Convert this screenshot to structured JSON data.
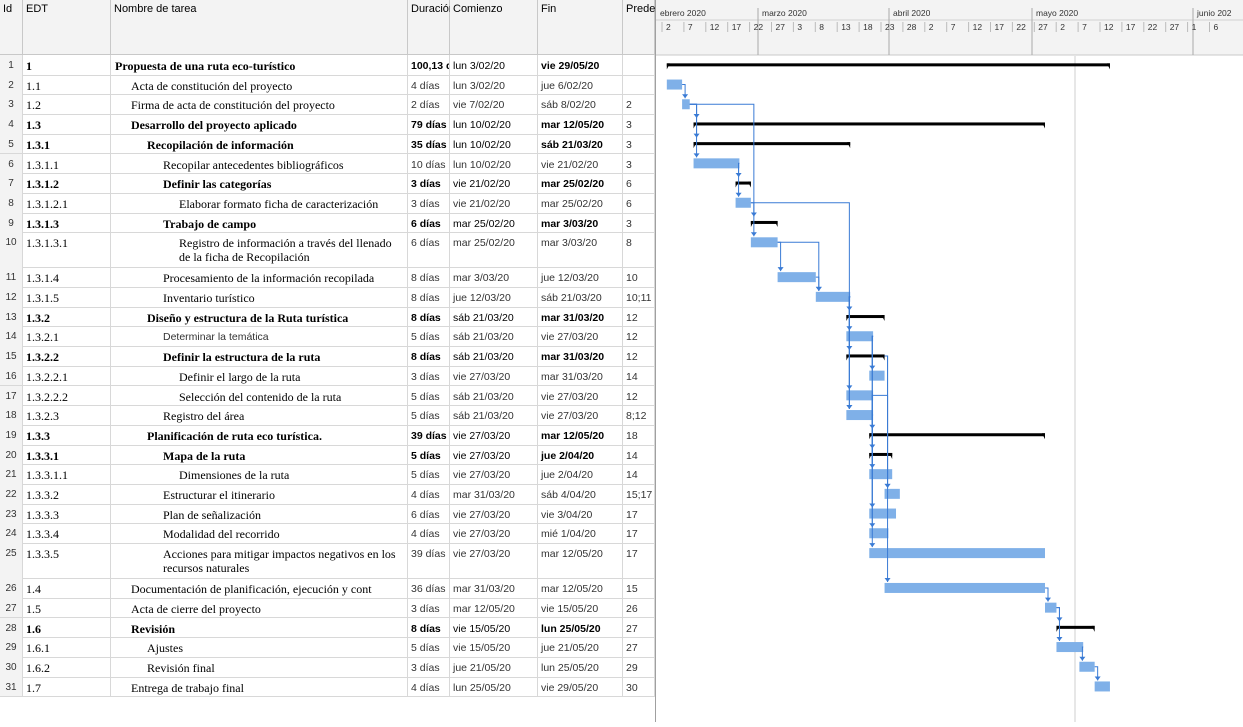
{
  "columns": {
    "id": "Id",
    "edt": "EDT",
    "name": "Nombre de tarea",
    "duration": "Duración",
    "start": "Comienzo",
    "finish": "Fin",
    "pred": "Predec"
  },
  "timeline": {
    "months": [
      "ebrero 2020",
      "marzo 2020",
      "abril 2020",
      "mayo 2020",
      "junio 202"
    ],
    "days": [
      "2",
      "7",
      "12",
      "17",
      "22",
      "27",
      "3",
      "8",
      "13",
      "18",
      "23",
      "28",
      "2",
      "7",
      "12",
      "17",
      "22",
      "27",
      "2",
      "7",
      "12",
      "17",
      "22",
      "27",
      "1",
      "6"
    ]
  },
  "colors": {
    "bar": "#7fb0e8",
    "summary": "#000000",
    "link": "#3a7bd5",
    "grid": "#e0e0e0"
  },
  "tasks": [
    {
      "id": "1",
      "edt": "1",
      "name": "Propuesta de una ruta eco-turístico",
      "dur": "100,13 d",
      "start": "lun 3/02/20",
      "fin": "vie 29/05/20",
      "pred": "",
      "summary": true,
      "indent": 0,
      "s": 1,
      "e": 117
    },
    {
      "id": "2",
      "edt": "1.1",
      "name": "Acta de constitución del proyecto",
      "dur": "4 días",
      "start": "lun 3/02/20",
      "fin": "jue 6/02/20",
      "pred": "",
      "summary": false,
      "indent": 1,
      "s": 1,
      "e": 5
    },
    {
      "id": "3",
      "edt": "1.2",
      "name": "Firma de acta de constitución del proyecto",
      "dur": "2 días",
      "start": "vie 7/02/20",
      "fin": "sáb 8/02/20",
      "pred": "2",
      "summary": false,
      "indent": 1,
      "s": 5,
      "e": 7
    },
    {
      "id": "4",
      "edt": "1.3",
      "name": "Desarrollo del proyecto aplicado",
      "dur": "79 días",
      "start": "lun 10/02/20",
      "fin": "mar 12/05/20",
      "pred": "3",
      "summary": true,
      "indent": 1,
      "s": 8,
      "e": 100
    },
    {
      "id": "5",
      "edt": "1.3.1",
      "name": "Recopilación de información",
      "dur": "35 días",
      "start": "lun 10/02/20",
      "fin": "sáb 21/03/20",
      "pred": "3",
      "summary": true,
      "indent": 2,
      "s": 8,
      "e": 49
    },
    {
      "id": "6",
      "edt": "1.3.1.1",
      "name": "Recopilar antecedentes bibliográficos",
      "dur": "10 días",
      "start": "lun 10/02/20",
      "fin": "vie 21/02/20",
      "pred": "3",
      "summary": false,
      "indent": 3,
      "s": 8,
      "e": 20
    },
    {
      "id": "7",
      "edt": "1.3.1.2",
      "name": "Definir las categorías",
      "dur": "3 días",
      "start": "vie 21/02/20",
      "fin": "mar 25/02/20",
      "pred": "6",
      "summary": true,
      "indent": 3,
      "s": 19,
      "e": 23
    },
    {
      "id": "8",
      "edt": "1.3.1.2.1",
      "name": "Elaborar formato ficha de caracterización",
      "dur": "3 días",
      "start": "vie 21/02/20",
      "fin": "mar 25/02/20",
      "pred": "6",
      "summary": false,
      "indent": 4,
      "s": 19,
      "e": 23
    },
    {
      "id": "9",
      "edt": "1.3.1.3",
      "name": "Trabajo de campo",
      "dur": "6 días",
      "start": "mar 25/02/20",
      "fin": "mar 3/03/20",
      "pred": "3",
      "summary": true,
      "indent": 3,
      "s": 23,
      "e": 30
    },
    {
      "id": "10",
      "edt": "1.3.1.3.1",
      "name": "Registro de información a través del llenado de la ficha de Recopilación",
      "dur": "6 días",
      "start": "mar 25/02/20",
      "fin": "mar 3/03/20",
      "pred": "8",
      "summary": false,
      "indent": 4,
      "s": 23,
      "e": 30,
      "tall": true
    },
    {
      "id": "11",
      "edt": "1.3.1.4",
      "name": "Procesamiento de la información recopilada",
      "dur": "8 días",
      "start": "mar 3/03/20",
      "fin": "jue 12/03/20",
      "pred": "10",
      "summary": false,
      "indent": 3,
      "s": 30,
      "e": 40
    },
    {
      "id": "12",
      "edt": "1.3.1.5",
      "name": "Inventario turístico",
      "dur": "8 días",
      "start": "jue 12/03/20",
      "fin": "sáb 21/03/20",
      "pred": "10;11",
      "summary": false,
      "indent": 3,
      "s": 40,
      "e": 49
    },
    {
      "id": "13",
      "edt": "1.3.2",
      "name": "Diseño y estructura de la Ruta turística",
      "dur": "8 días",
      "start": "sáb 21/03/20",
      "fin": "mar 31/03/20",
      "pred": "12",
      "summary": true,
      "indent": 2,
      "s": 48,
      "e": 58
    },
    {
      "id": "14",
      "edt": "1.3.2.1",
      "name": "Determinar la temática",
      "dur": "5 días",
      "start": "sáb 21/03/20",
      "fin": "vie 27/03/20",
      "pred": "12",
      "summary": false,
      "indent": 3,
      "s": 48,
      "e": 55,
      "sans": true
    },
    {
      "id": "15",
      "edt": "1.3.2.2",
      "name": "Definir la estructura de la ruta",
      "dur": "8 días",
      "start": "sáb 21/03/20",
      "fin": "mar 31/03/20",
      "pred": "12",
      "summary": true,
      "indent": 3,
      "s": 48,
      "e": 58
    },
    {
      "id": "16",
      "edt": "1.3.2.2.1",
      "name": "Definir el largo de la ruta",
      "dur": "3 días",
      "start": "vie 27/03/20",
      "fin": "mar 31/03/20",
      "pred": "14",
      "summary": false,
      "indent": 4,
      "s": 54,
      "e": 58
    },
    {
      "id": "17",
      "edt": "1.3.2.2.2",
      "name": "Selección del contenido de la ruta",
      "dur": "5 días",
      "start": "sáb 21/03/20",
      "fin": "vie 27/03/20",
      "pred": "12",
      "summary": false,
      "indent": 4,
      "s": 48,
      "e": 55
    },
    {
      "id": "18",
      "edt": "1.3.2.3",
      "name": "Registro del área",
      "dur": "5 días",
      "start": "sáb 21/03/20",
      "fin": "vie 27/03/20",
      "pred": "8;12",
      "summary": false,
      "indent": 3,
      "s": 48,
      "e": 55
    },
    {
      "id": "19",
      "edt": "1.3.3",
      "name": "Planificación de ruta eco turística.",
      "dur": "39 días",
      "start": "vie 27/03/20",
      "fin": "mar 12/05/20",
      "pred": "18",
      "summary": true,
      "indent": 2,
      "s": 54,
      "e": 100
    },
    {
      "id": "20",
      "edt": "1.3.3.1",
      "name": "Mapa de la ruta",
      "dur": "5 días",
      "start": "vie 27/03/20",
      "fin": "jue 2/04/20",
      "pred": "14",
      "summary": true,
      "indent": 3,
      "s": 54,
      "e": 60
    },
    {
      "id": "21",
      "edt": "1.3.3.1.1",
      "name": "Dimensiones de la ruta",
      "dur": "5 días",
      "start": "vie 27/03/20",
      "fin": "jue 2/04/20",
      "pred": "14",
      "summary": false,
      "indent": 4,
      "s": 54,
      "e": 60
    },
    {
      "id": "22",
      "edt": "1.3.3.2",
      "name": "Estructurar el itinerario",
      "dur": "4 días",
      "start": "mar 31/03/20",
      "fin": "sáb 4/04/20",
      "pred": "15;17",
      "summary": false,
      "indent": 3,
      "s": 58,
      "e": 62
    },
    {
      "id": "23",
      "edt": "1.3.3.3",
      "name": "Plan de señalización",
      "dur": "6 días",
      "start": "vie 27/03/20",
      "fin": "vie 3/04/20",
      "pred": "17",
      "summary": false,
      "indent": 3,
      "s": 54,
      "e": 61
    },
    {
      "id": "24",
      "edt": "1.3.3.4",
      "name": "Modalidad del recorrido",
      "dur": "4 días",
      "start": "vie 27/03/20",
      "fin": "mié 1/04/20",
      "pred": "17",
      "summary": false,
      "indent": 3,
      "s": 54,
      "e": 59
    },
    {
      "id": "25",
      "edt": "1.3.3.5",
      "name": "Acciones para mitigar impactos negativos en los recursos naturales",
      "dur": "39 días",
      "start": "vie 27/03/20",
      "fin": "mar 12/05/20",
      "pred": "17",
      "summary": false,
      "indent": 3,
      "s": 54,
      "e": 100,
      "tall": true
    },
    {
      "id": "26",
      "edt": "1.4",
      "name": "Documentación de planificación, ejecución y cont",
      "dur": "36 días",
      "start": "mar 31/03/20",
      "fin": "mar 12/05/20",
      "pred": "15",
      "summary": false,
      "indent": 1,
      "s": 58,
      "e": 100
    },
    {
      "id": "27",
      "edt": "1.5",
      "name": "Acta de cierre del proyecto",
      "dur": "3 días",
      "start": "mar 12/05/20",
      "fin": "vie 15/05/20",
      "pred": "26",
      "summary": false,
      "indent": 1,
      "s": 100,
      "e": 103
    },
    {
      "id": "28",
      "edt": "1.6",
      "name": "Revisión",
      "dur": "8 días",
      "start": "vie 15/05/20",
      "fin": "lun 25/05/20",
      "pred": "27",
      "summary": true,
      "indent": 1,
      "s": 103,
      "e": 113
    },
    {
      "id": "29",
      "edt": "1.6.1",
      "name": "Ajustes",
      "dur": "5 días",
      "start": "vie 15/05/20",
      "fin": "jue 21/05/20",
      "pred": "27",
      "summary": false,
      "indent": 2,
      "s": 103,
      "e": 110
    },
    {
      "id": "30",
      "edt": "1.6.2",
      "name": "Revisión final",
      "dur": "3 días",
      "start": "jue 21/05/20",
      "fin": "lun 25/05/20",
      "pred": "29",
      "summary": false,
      "indent": 2,
      "s": 109,
      "e": 113
    },
    {
      "id": "31",
      "edt": "1.7",
      "name": "Entrega de trabajo final",
      "dur": "4 días",
      "start": "lun 25/05/20",
      "fin": "vie 29/05/20",
      "pred": "30",
      "summary": false,
      "indent": 1,
      "s": 113,
      "e": 117
    }
  ]
}
